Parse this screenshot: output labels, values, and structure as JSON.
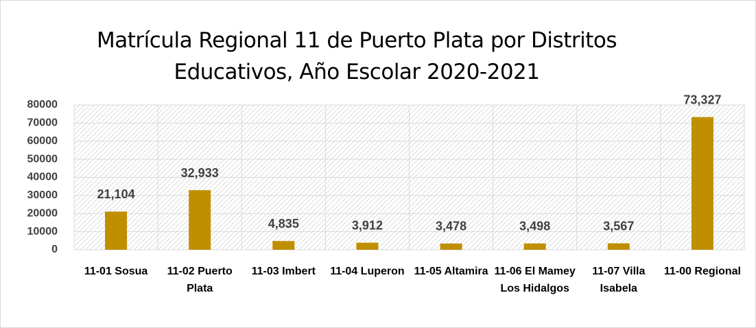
{
  "chart_data": {
    "type": "bar",
    "title": "Matrícula Regional 11 de Puerto Plata por Distritos Educativos, Año Escolar 2020-2021",
    "categories": [
      "11-01 Sosua",
      "11-02 Puerto Plata",
      "11-03 Imbert",
      "11-04 Luperon",
      "11-05 Altamira",
      "11-06 El Mamey  Los Hidalgos",
      "11-07 Villa Isabela",
      "11-00 Regional"
    ],
    "values": [
      21104,
      32933,
      4835,
      3912,
      3478,
      3498,
      3567,
      73327
    ],
    "value_labels": [
      "21,104",
      "32,933",
      "4,835",
      "3,912",
      "3,478",
      "3,498",
      "3,567",
      "73,327"
    ],
    "color": "#bf8f00",
    "ylim": [
      0,
      80000
    ],
    "yticks": [
      0,
      10000,
      20000,
      30000,
      40000,
      50000,
      60000,
      70000,
      80000
    ],
    "grid": true
  }
}
